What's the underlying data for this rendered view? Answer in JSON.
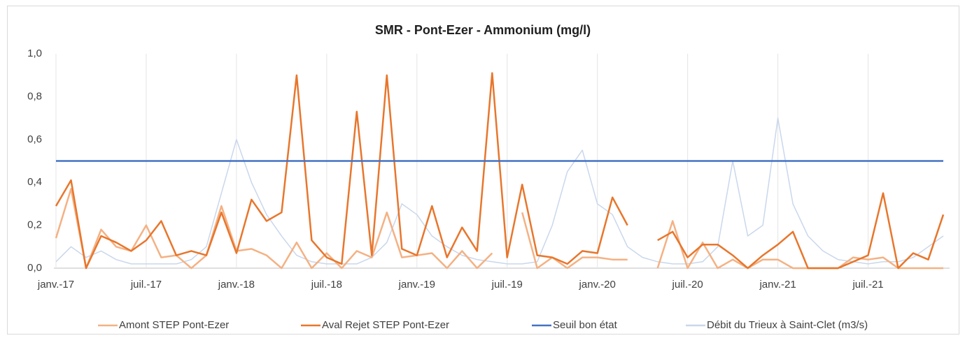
{
  "chart_data": {
    "type": "line",
    "title": "SMR - Pont-Ezer - Ammonium (mg/l)",
    "x": [
      "2017-01",
      "2017-02",
      "2017-03",
      "2017-04",
      "2017-05",
      "2017-06",
      "2017-07",
      "2017-08",
      "2017-09",
      "2017-10",
      "2017-11",
      "2017-12",
      "2018-01",
      "2018-02",
      "2018-03",
      "2018-04",
      "2018-05",
      "2018-06",
      "2018-07",
      "2018-08",
      "2018-09",
      "2018-10",
      "2018-11",
      "2018-12",
      "2019-01",
      "2019-02",
      "2019-03",
      "2019-04",
      "2019-05",
      "2019-06",
      "2019-07",
      "2019-08",
      "2019-09",
      "2019-10",
      "2019-11",
      "2019-12",
      "2020-01",
      "2020-02",
      "2020-03",
      "2020-04",
      "2020-05",
      "2020-06",
      "2020-07",
      "2020-08",
      "2020-09",
      "2020-10",
      "2020-11",
      "2020-12",
      "2021-01",
      "2021-02",
      "2021-03",
      "2021-04",
      "2021-05",
      "2021-06",
      "2021-07",
      "2021-08",
      "2021-09",
      "2021-10",
      "2021-11",
      "2021-12"
    ],
    "series": [
      {
        "name": "Débit du Trieux à Saint-Clet (m3/s)",
        "color": "#c9d7ec",
        "width": 1.5,
        "values": [
          0.03,
          0.1,
          0.05,
          0.08,
          0.04,
          0.02,
          0.02,
          0.02,
          0.02,
          0.04,
          0.1,
          0.35,
          0.6,
          0.4,
          0.25,
          0.15,
          0.06,
          0.03,
          0.02,
          0.02,
          0.02,
          0.05,
          0.12,
          0.3,
          0.25,
          0.15,
          0.1,
          0.06,
          0.04,
          0.03,
          0.02,
          0.02,
          0.03,
          0.2,
          0.45,
          0.55,
          0.3,
          0.25,
          0.1,
          0.05,
          0.03,
          0.02,
          0.02,
          0.03,
          0.1,
          0.5,
          0.15,
          0.2,
          0.7,
          0.3,
          0.15,
          0.08,
          0.04,
          0.03,
          0.02,
          0.03,
          0.03,
          0.05,
          0.1,
          0.15
        ]
      },
      {
        "name": "Amont STEP Pont-Ezer",
        "color": "#f4b183",
        "width": 2.5,
        "values": [
          0.14,
          0.37,
          0,
          0.18,
          0.1,
          0.08,
          0.2,
          0.05,
          0.06,
          0,
          0.06,
          0.29,
          0.08,
          0.09,
          0.06,
          0,
          0.12,
          0,
          0.07,
          0,
          0.08,
          0.05,
          0.26,
          0.05,
          0.06,
          0.07,
          0,
          0.08,
          0,
          0.07,
          null,
          0.26,
          0,
          0.05,
          0,
          0.05,
          0.05,
          0.04,
          0.04,
          null,
          0,
          0.22,
          0,
          0.12,
          0,
          0.04,
          0,
          0.04,
          0.04,
          0,
          0,
          0,
          0,
          0.05,
          0.04,
          0.05,
          0,
          0,
          0,
          0
        ]
      },
      {
        "name": "Aval Rejet STEP Pont-Ezer",
        "color": "#e8762c",
        "width": 2.5,
        "values": [
          0.29,
          0.41,
          0,
          0.15,
          0.12,
          0.08,
          0.13,
          0.22,
          0.06,
          0.08,
          0.06,
          0.26,
          0.07,
          0.32,
          0.22,
          0.26,
          0.9,
          0.13,
          0.05,
          0.02,
          0.73,
          0.06,
          0.9,
          0.09,
          0.06,
          0.29,
          0.05,
          0.19,
          0.08,
          0.91,
          0.05,
          0.39,
          0.06,
          0.05,
          0.02,
          0.08,
          0.07,
          0.33,
          0.2,
          null,
          0.13,
          0.17,
          0.05,
          0.11,
          0.11,
          0.06,
          0,
          0.06,
          0.11,
          0.17,
          0,
          0,
          0,
          0.03,
          0.06,
          0.35,
          0,
          0.07,
          0.04,
          0.25
        ]
      },
      {
        "name": "Seuil bon état",
        "color": "#4472c4",
        "width": 2.5,
        "values": [
          0.5,
          0.5,
          0.5,
          0.5,
          0.5,
          0.5,
          0.5,
          0.5,
          0.5,
          0.5,
          0.5,
          0.5,
          0.5,
          0.5,
          0.5,
          0.5,
          0.5,
          0.5,
          0.5,
          0.5,
          0.5,
          0.5,
          0.5,
          0.5,
          0.5,
          0.5,
          0.5,
          0.5,
          0.5,
          0.5,
          0.5,
          0.5,
          0.5,
          0.5,
          0.5,
          0.5,
          0.5,
          0.5,
          0.5,
          0.5,
          0.5,
          0.5,
          0.5,
          0.5,
          0.5,
          0.5,
          0.5,
          0.5,
          0.5,
          0.5,
          0.5,
          0.5,
          0.5,
          0.5,
          0.5,
          0.5,
          0.5,
          0.5,
          0.5,
          0.5
        ]
      }
    ],
    "legend_order": [
      1,
      2,
      3,
      0
    ],
    "xlim": [
      "2017-01",
      "2021-12"
    ],
    "xticks": [
      {
        "value": "2017-01",
        "label": "janv.-17"
      },
      {
        "value": "2017-07",
        "label": "juil.-17"
      },
      {
        "value": "2018-01",
        "label": "janv.-18"
      },
      {
        "value": "2018-07",
        "label": "juil.-18"
      },
      {
        "value": "2019-01",
        "label": "janv.-19"
      },
      {
        "value": "2019-07",
        "label": "juil.-19"
      },
      {
        "value": "2020-01",
        "label": "janv.-20"
      },
      {
        "value": "2020-07",
        "label": "juil.-20"
      },
      {
        "value": "2021-01",
        "label": "janv.-21"
      },
      {
        "value": "2021-07",
        "label": "juil.-21"
      }
    ],
    "ylim": [
      0,
      1
    ],
    "yticks": [
      {
        "value": 0,
        "label": "0,0"
      },
      {
        "value": 0.2,
        "label": "0,2"
      },
      {
        "value": 0.4,
        "label": "0,4"
      },
      {
        "value": 0.6,
        "label": "0,6"
      },
      {
        "value": 0.8,
        "label": "0,8"
      },
      {
        "value": 1,
        "label": "1,0"
      }
    ],
    "grid": "x",
    "legend": "bottom"
  }
}
